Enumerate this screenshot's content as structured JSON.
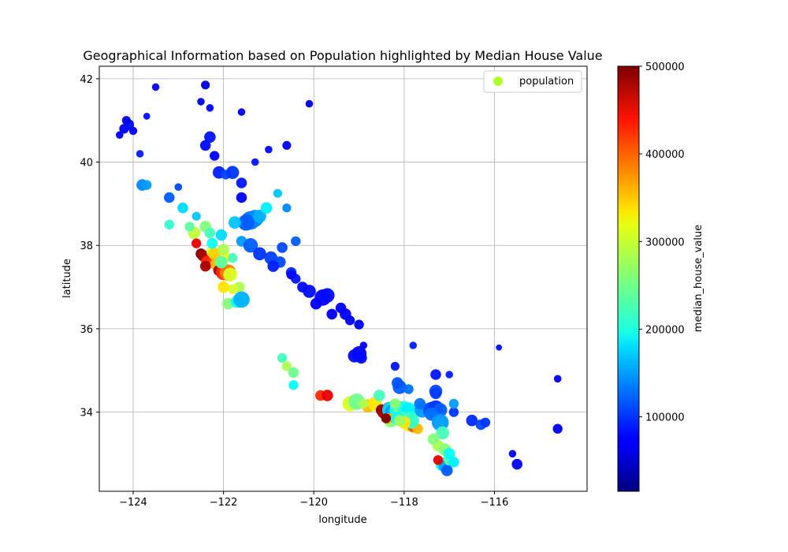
{
  "chart_data": {
    "type": "scatter",
    "title": "Geographical Information based on Population highlighted by Median House Value",
    "xlabel": "longitude",
    "ylabel": "latitude",
    "xlim": [
      -124.75,
      -113.95
    ],
    "ylim": [
      32.1,
      42.3
    ],
    "xticks": [
      -124,
      -122,
      -120,
      -118,
      -116
    ],
    "xtick_labels": [
      "−124",
      "−122",
      "−120",
      "−118",
      "−116"
    ],
    "yticks": [
      34,
      36,
      38,
      40,
      42
    ],
    "ytick_labels": [
      "34",
      "36",
      "38",
      "40",
      "42"
    ],
    "grid": true,
    "legend": {
      "label": "population",
      "placement": "top-right",
      "color": "#adff2f"
    },
    "colorbar": {
      "label": "median_house_value",
      "colormap": "jet",
      "range": [
        15000,
        500000
      ],
      "ticks": [
        100000,
        200000,
        300000,
        400000,
        500000
      ],
      "tick_labels": [
        "100000",
        "200000",
        "300000",
        "400000",
        "500000"
      ]
    },
    "points": [
      [
        -124.2,
        40.8,
        70000,
        500
      ],
      [
        -124.1,
        40.9,
        80000,
        600
      ],
      [
        -124.3,
        40.65,
        75000,
        300
      ],
      [
        -124.15,
        41.0,
        68000,
        400
      ],
      [
        -124.0,
        40.75,
        72000,
        350
      ],
      [
        -123.85,
        40.2,
        90000,
        300
      ],
      [
        -123.8,
        39.45,
        140000,
        700
      ],
      [
        -123.7,
        39.45,
        150000,
        500
      ],
      [
        -123.5,
        41.8,
        70000,
        300
      ],
      [
        -123.7,
        41.1,
        80000,
        250
      ],
      [
        -123.2,
        39.15,
        120000,
        600
      ],
      [
        -123.0,
        39.4,
        110000,
        300
      ],
      [
        -122.4,
        41.85,
        60000,
        400
      ],
      [
        -122.5,
        41.45,
        65000,
        300
      ],
      [
        -122.3,
        41.3,
        70000,
        300
      ],
      [
        -122.3,
        40.6,
        85000,
        700
      ],
      [
        -122.4,
        40.4,
        80000,
        600
      ],
      [
        -122.2,
        40.15,
        75000,
        500
      ],
      [
        -122.1,
        39.75,
        90000,
        800
      ],
      [
        -121.95,
        39.7,
        110000,
        500
      ],
      [
        -121.8,
        39.75,
        100000,
        900
      ],
      [
        -121.6,
        39.5,
        85000,
        600
      ],
      [
        -121.6,
        39.15,
        75000,
        600
      ],
      [
        -121.4,
        38.6,
        130000,
        1800
      ],
      [
        -121.3,
        38.65,
        140000,
        1500
      ],
      [
        -121.5,
        38.55,
        120000,
        1400
      ],
      [
        -121.2,
        38.7,
        160000,
        900
      ],
      [
        -121.05,
        38.9,
        190000,
        700
      ],
      [
        -120.8,
        39.25,
        170000,
        400
      ],
      [
        -120.6,
        38.9,
        140000,
        400
      ],
      [
        -120.4,
        38.1,
        120000,
        500
      ],
      [
        -120.7,
        37.95,
        110000,
        600
      ],
      [
        -120.95,
        37.7,
        105000,
        900
      ],
      [
        -120.75,
        37.6,
        110000,
        700
      ],
      [
        -120.5,
        37.35,
        95000,
        600
      ],
      [
        -120.4,
        37.2,
        85000,
        500
      ],
      [
        -120.1,
        36.9,
        80000,
        900
      ],
      [
        -119.8,
        36.75,
        75000,
        1400
      ],
      [
        -119.7,
        36.8,
        80000,
        1100
      ],
      [
        -119.4,
        36.5,
        70000,
        600
      ],
      [
        -119.3,
        36.35,
        75000,
        700
      ],
      [
        -119.0,
        36.1,
        70000,
        500
      ],
      [
        -119.0,
        35.4,
        75000,
        1200
      ],
      [
        -119.1,
        35.35,
        80000,
        900
      ],
      [
        -118.9,
        35.6,
        70000,
        300
      ],
      [
        -118.2,
        35.1,
        85000,
        400
      ],
      [
        -117.8,
        35.6,
        90000,
        300
      ],
      [
        -117.3,
        34.9,
        85000,
        600
      ],
      [
        -117.0,
        34.9,
        90000,
        300
      ],
      [
        -116.9,
        34.0,
        100000,
        500
      ],
      [
        -116.5,
        33.8,
        95000,
        700
      ],
      [
        -116.3,
        33.7,
        110000,
        600
      ],
      [
        -116.2,
        33.75,
        100000,
        500
      ],
      [
        -115.5,
        32.75,
        70000,
        600
      ],
      [
        -115.6,
        33.0,
        75000,
        300
      ],
      [
        -114.6,
        33.6,
        70000,
        500
      ],
      [
        -114.6,
        34.8,
        75000,
        300
      ],
      [
        -115.9,
        35.55,
        80000,
        200
      ],
      [
        -120.1,
        41.4,
        60000,
        300
      ],
      [
        -120.6,
        40.4,
        75000,
        400
      ],
      [
        -121.0,
        40.3,
        80000,
        300
      ],
      [
        -121.3,
        40.0,
        85000,
        300
      ],
      [
        -121.6,
        41.2,
        70000,
        300
      ],
      [
        -122.4,
        38.45,
        260000,
        700
      ],
      [
        -122.65,
        38.3,
        290000,
        800
      ],
      [
        -122.6,
        38.05,
        450000,
        500
      ],
      [
        -122.5,
        37.8,
        500000,
        600
      ],
      [
        -122.45,
        37.75,
        480000,
        700
      ],
      [
        -122.35,
        37.6,
        420000,
        900
      ],
      [
        -122.25,
        37.85,
        300000,
        700
      ],
      [
        -122.2,
        37.8,
        340000,
        800
      ],
      [
        -122.15,
        37.55,
        350000,
        900
      ],
      [
        -122.1,
        37.4,
        480000,
        700
      ],
      [
        -122.0,
        37.35,
        420000,
        1200
      ],
      [
        -121.9,
        37.35,
        380000,
        1400
      ],
      [
        -121.85,
        37.3,
        300000,
        1000
      ],
      [
        -121.95,
        37.7,
        320000,
        600
      ],
      [
        -122.0,
        37.9,
        280000,
        700
      ],
      [
        -122.05,
        37.6,
        240000,
        800
      ],
      [
        -121.8,
        37.7,
        230000,
        500
      ],
      [
        -122.25,
        38.05,
        200000,
        600
      ],
      [
        -122.05,
        38.25,
        180000,
        700
      ],
      [
        -121.75,
        38.55,
        170000,
        800
      ],
      [
        -121.65,
        37.0,
        280000,
        600
      ],
      [
        -121.9,
        36.6,
        260000,
        700
      ],
      [
        -121.7,
        36.65,
        200000,
        800
      ],
      [
        -121.6,
        36.7,
        160000,
        1400
      ],
      [
        -121.8,
        36.95,
        300000,
        500
      ],
      [
        -122.0,
        37.0,
        330000,
        700
      ],
      [
        -122.4,
        37.5,
        480000,
        600
      ],
      [
        -120.7,
        35.3,
        230000,
        500
      ],
      [
        -120.6,
        35.1,
        280000,
        500
      ],
      [
        -120.45,
        34.95,
        250000,
        600
      ],
      [
        -120.45,
        34.65,
        200000,
        500
      ],
      [
        -119.85,
        34.4,
        420000,
        600
      ],
      [
        -119.7,
        34.4,
        450000,
        700
      ],
      [
        -119.2,
        34.2,
        300000,
        1200
      ],
      [
        -119.05,
        34.25,
        250000,
        1400
      ],
      [
        -118.8,
        34.15,
        350000,
        900
      ],
      [
        -118.65,
        34.2,
        330000,
        1000
      ],
      [
        -118.5,
        34.05,
        500000,
        700
      ],
      [
        -118.45,
        34.0,
        480000,
        900
      ],
      [
        -118.4,
        34.05,
        500000,
        600
      ],
      [
        -118.35,
        34.1,
        450000,
        700
      ],
      [
        -118.3,
        34.05,
        180000,
        1500
      ],
      [
        -118.25,
        34.0,
        150000,
        1300
      ],
      [
        -118.2,
        33.95,
        160000,
        1400
      ],
      [
        -118.15,
        34.05,
        200000,
        1300
      ],
      [
        -118.1,
        34.1,
        250000,
        1000
      ],
      [
        -118.0,
        34.1,
        210000,
        1000
      ],
      [
        -117.9,
        34.05,
        190000,
        1200
      ],
      [
        -117.85,
        33.85,
        240000,
        900
      ],
      [
        -117.9,
        33.7,
        300000,
        1000
      ],
      [
        -117.8,
        33.65,
        400000,
        700
      ],
      [
        -117.7,
        33.6,
        350000,
        600
      ],
      [
        -117.85,
        33.8,
        220000,
        1400
      ],
      [
        -118.05,
        33.85,
        230000,
        1000
      ],
      [
        -118.3,
        33.8,
        260000,
        1000
      ],
      [
        -118.35,
        33.85,
        360000,
        600
      ],
      [
        -118.4,
        33.85,
        500000,
        500
      ],
      [
        -118.15,
        33.85,
        200000,
        900
      ],
      [
        -117.6,
        34.05,
        150000,
        1200
      ],
      [
        -117.4,
        34.05,
        110000,
        1400
      ],
      [
        -117.3,
        34.1,
        100000,
        1200
      ],
      [
        -117.2,
        34.05,
        120000,
        1000
      ],
      [
        -117.4,
        33.95,
        130000,
        900
      ],
      [
        -117.2,
        33.75,
        150000,
        1500
      ],
      [
        -117.15,
        33.5,
        230000,
        900
      ],
      [
        -117.25,
        33.2,
        280000,
        700
      ],
      [
        -117.1,
        33.1,
        260000,
        800
      ],
      [
        -117.15,
        32.75,
        200000,
        1000
      ],
      [
        -117.1,
        32.7,
        150000,
        800
      ],
      [
        -117.05,
        32.6,
        120000,
        700
      ],
      [
        -117.0,
        32.85,
        240000,
        600
      ],
      [
        -117.25,
        32.85,
        450000,
        500
      ],
      [
        -117.0,
        33.0,
        200000,
        700
      ],
      [
        -116.9,
        32.8,
        190000,
        600
      ],
      [
        -117.35,
        33.35,
        260000,
        700
      ],
      [
        -117.3,
        34.5,
        110000,
        900
      ],
      [
        -117.3,
        34.45,
        105000,
        700
      ],
      [
        -116.9,
        34.2,
        150000,
        500
      ],
      [
        -117.65,
        34.2,
        130000,
        700
      ],
      [
        -118.1,
        34.6,
        120000,
        1000
      ],
      [
        -118.15,
        34.7,
        115000,
        700
      ],
      [
        -117.9,
        34.55,
        130000,
        500
      ],
      [
        -118.55,
        34.4,
        230000,
        700
      ],
      [
        -118.9,
        34.2,
        280000,
        500
      ],
      [
        -118.2,
        34.2,
        260000,
        600
      ],
      [
        -118.0,
        33.75,
        330000,
        800
      ],
      [
        -118.1,
        33.8,
        270000,
        700
      ],
      [
        -121.6,
        38.1,
        150000,
        600
      ],
      [
        -121.4,
        38.0,
        120000,
        1100
      ],
      [
        -121.2,
        37.8,
        100000,
        900
      ],
      [
        -120.9,
        37.5,
        90000,
        700
      ],
      [
        -120.5,
        37.3,
        80000,
        500
      ],
      [
        -120.25,
        37.0,
        80000,
        600
      ],
      [
        -119.95,
        36.6,
        75000,
        700
      ],
      [
        -119.6,
        36.35,
        70000,
        600
      ],
      [
        -119.2,
        36.2,
        70000,
        500
      ],
      [
        -118.95,
        35.3,
        80000,
        700
      ],
      [
        -122.3,
        38.3,
        230000,
        600
      ],
      [
        -122.75,
        38.45,
        240000,
        500
      ],
      [
        -123.2,
        38.5,
        220000,
        500
      ],
      [
        -122.9,
        38.9,
        180000,
        600
      ],
      [
        -122.6,
        38.7,
        170000,
        400
      ]
    ]
  }
}
